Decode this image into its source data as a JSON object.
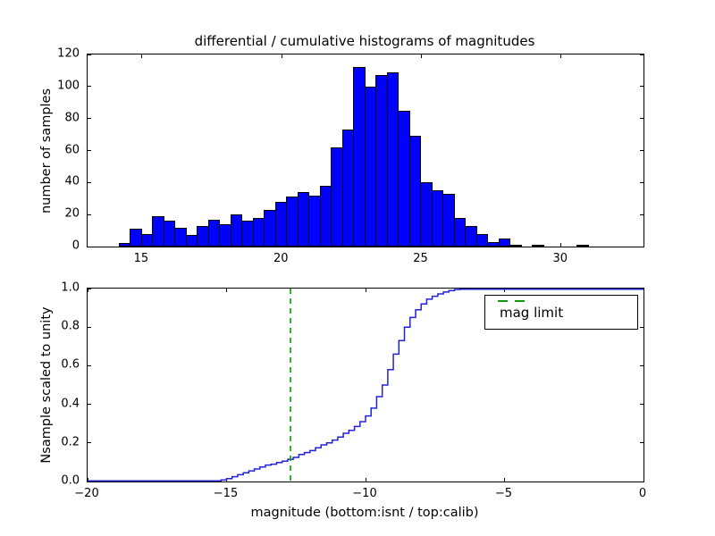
{
  "figure": {
    "title": "differential / cumulative histograms of magnitudes",
    "background": "#ffffff"
  },
  "colors": {
    "bar_fill": "#0000ff",
    "bar_edge": "#000000",
    "curve_line": "#2222dd",
    "mag_limit_line": "#0a9a0a",
    "axis_and_text": "#000000"
  },
  "top_chart": {
    "ylabel": "number of samples",
    "xtick_labels": [
      "15",
      "20",
      "25",
      "30"
    ],
    "ytick_labels": [
      "0",
      "20",
      "40",
      "60",
      "80",
      "100",
      "120"
    ]
  },
  "bottom_chart": {
    "xlabel": "magnitude (bottom:isnt / top:calib)",
    "ylabel": "Nsample scaled to unity",
    "xtick_labels": [
      "−20",
      "−15",
      "−10",
      "−5",
      "0"
    ],
    "ytick_labels": [
      "0.0",
      "0.2",
      "0.4",
      "0.6",
      "0.8",
      "1.0"
    ],
    "legend": {
      "label": "mag limit",
      "position": "upper right",
      "line_style": "dashed",
      "line_color": "#0a9a0a"
    }
  },
  "chart_data": [
    {
      "type": "bar",
      "subplot": "top",
      "title": "differential / cumulative histograms of magnitudes",
      "xlabel": "",
      "ylabel": "number of samples",
      "bin_start": 14.16,
      "bin_width": 0.4,
      "values": [
        2,
        11,
        8,
        19,
        16,
        12,
        7,
        13,
        17,
        14,
        20,
        16,
        18,
        23,
        28,
        31,
        34,
        32,
        38,
        62,
        73,
        112,
        100,
        107,
        109,
        85,
        69,
        40,
        35,
        33,
        18,
        13,
        8,
        3,
        5,
        1,
        0,
        1,
        0,
        0,
        0,
        1
      ],
      "xlim": [
        13.05,
        32.95
      ],
      "ylim": [
        0,
        120
      ],
      "xticks": [
        15,
        20,
        25,
        30
      ],
      "yticks": [
        0,
        20,
        40,
        60,
        80,
        100,
        120
      ],
      "grid": false,
      "bar_color": "#0000ff",
      "bar_edgecolor": "#000000"
    },
    {
      "type": "line",
      "subplot": "bottom",
      "style": "cumulative-step",
      "xlabel": "magnitude (bottom:isnt / top:calib)",
      "ylabel": "Nsample scaled to unity",
      "xlim": [
        -20,
        0
      ],
      "ylim": [
        0.0,
        1.0
      ],
      "xticks": [
        -20,
        -15,
        -10,
        -5,
        0
      ],
      "yticks": [
        0.0,
        0.2,
        0.4,
        0.6,
        0.8,
        1.0
      ],
      "grid": false,
      "line_color": "#2222dd",
      "step_start_x": -15.4,
      "step_dx": 0.2,
      "cumulative_right_edge_values": [
        0.003,
        0.008,
        0.015,
        0.025,
        0.035,
        0.045,
        0.055,
        0.065,
        0.075,
        0.085,
        0.09,
        0.098,
        0.105,
        0.115,
        0.125,
        0.14,
        0.15,
        0.16,
        0.175,
        0.19,
        0.2,
        0.215,
        0.23,
        0.25,
        0.265,
        0.285,
        0.31,
        0.34,
        0.38,
        0.44,
        0.5,
        0.58,
        0.66,
        0.73,
        0.8,
        0.85,
        0.89,
        0.92,
        0.945,
        0.96,
        0.972,
        0.982,
        0.99,
        0.995,
        1.0
      ],
      "flat_at_zero_from_x": -20,
      "flat_at_one_to_x": 0,
      "mag_limit": {
        "x": -12.7,
        "color": "#0a9a0a",
        "style": "dashed",
        "label": "mag limit"
      },
      "legend": {
        "label": "mag limit",
        "position": "upper right"
      }
    }
  ]
}
